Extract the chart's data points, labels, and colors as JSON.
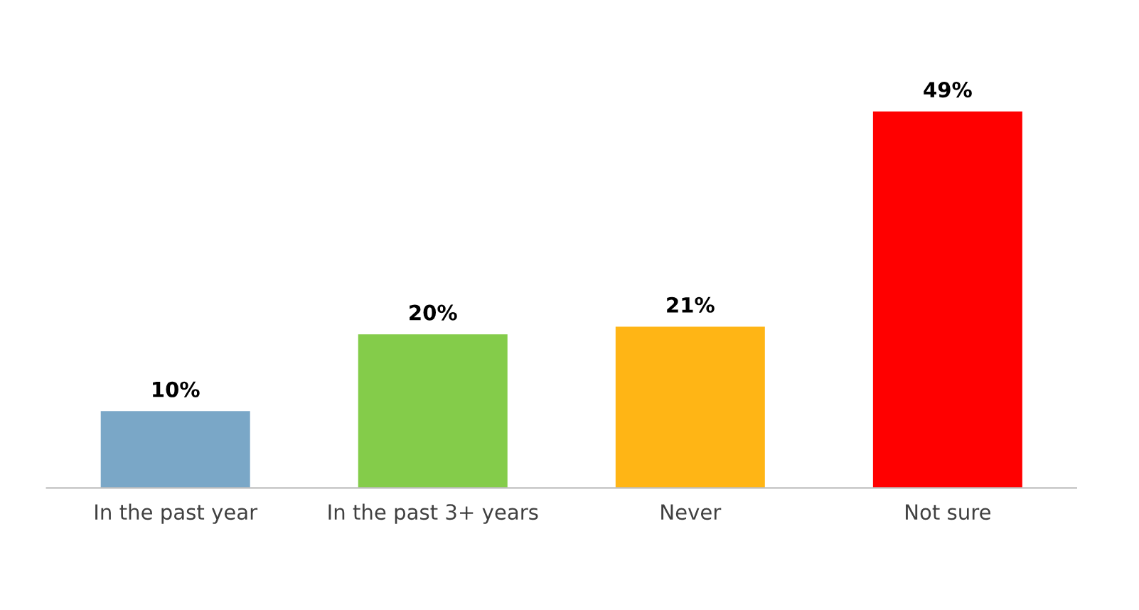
{
  "chart_data": {
    "type": "bar",
    "categories": [
      "In the past year",
      "In the past 3+ years",
      "Never",
      "Not sure"
    ],
    "values": [
      10,
      20,
      21,
      49
    ],
    "colors": [
      "#7aa7c7",
      "#84cc4a",
      "#ffb515",
      "#ff0000"
    ],
    "data_labels": true,
    "value_labels": [
      "10%",
      "20%",
      "21%",
      "49%"
    ],
    "grid": false
  }
}
